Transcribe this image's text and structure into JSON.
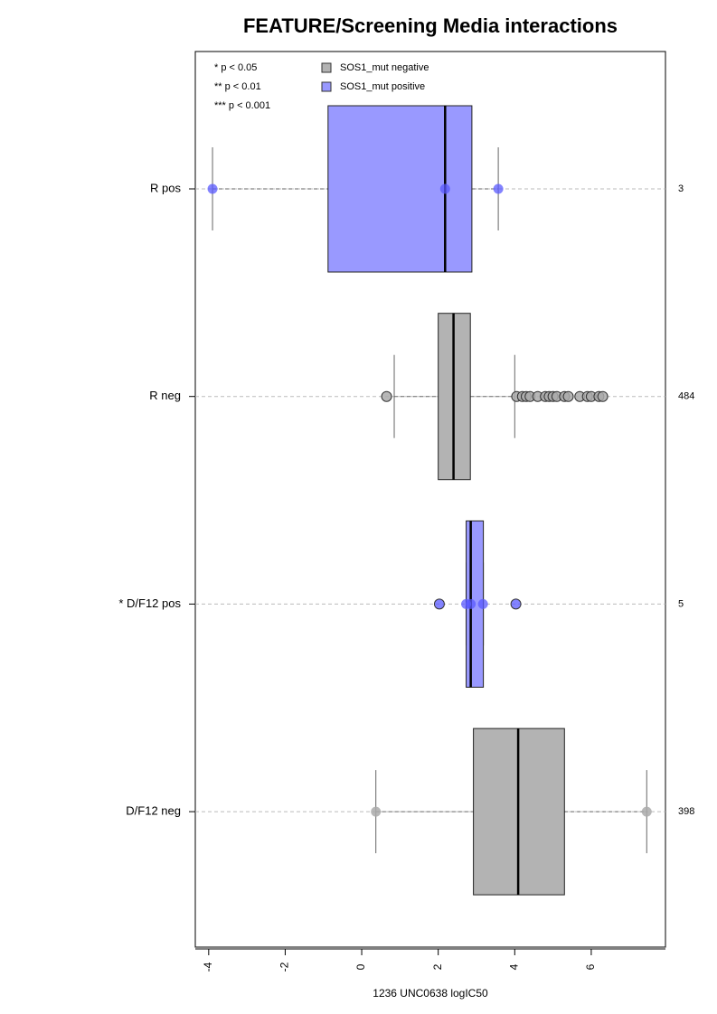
{
  "chart_data": {
    "type": "boxplot",
    "title": "FEATURE/Screening Media interactions",
    "x_label": "1236 UNC0638 logIC50",
    "xlim": [
      -4.35,
      7.94
    ],
    "xticks": [
      -4,
      -2,
      0,
      2,
      4,
      6
    ],
    "grid": true,
    "notes": [
      "* p < 0.05",
      "** p < 0.01",
      "*** p < 0.001"
    ],
    "legend": [
      {
        "name": "SOS1_mut negative",
        "color": "#b3b3b3"
      },
      {
        "name": "SOS1_mut positive",
        "color": "#9999ff"
      }
    ],
    "categories": [
      "R pos",
      "R neg",
      "* D/F12 pos",
      "D/F12 neg"
    ],
    "counts": [
      3,
      484,
      5,
      398
    ],
    "boxes": [
      {
        "color": "#9999ff",
        "whisker_low": -3.9,
        "q1": -0.88,
        "median": 2.18,
        "q3": 2.88,
        "whisker_high": 3.57,
        "points": [
          -3.9,
          2.18,
          3.57
        ]
      },
      {
        "color": "#b3b3b3",
        "whisker_low": 0.85,
        "q1": 2.0,
        "median": 2.4,
        "q3": 2.84,
        "whisker_high": 4.0,
        "points": [
          0.65,
          4.05,
          4.2,
          4.3,
          4.4,
          4.6,
          4.8,
          4.9,
          5.0,
          5.1,
          5.3,
          5.4,
          5.7,
          5.9,
          6.0,
          6.2,
          6.3
        ]
      },
      {
        "color": "#9999ff",
        "whisker_low": 2.73,
        "q1": 2.73,
        "median": 2.85,
        "q3": 3.18,
        "whisker_high": 3.18,
        "points": [
          2.03,
          2.73,
          2.85,
          3.17,
          4.03
        ]
      },
      {
        "color": "#b3b3b3",
        "whisker_low": 0.37,
        "q1": 2.92,
        "median": 4.09,
        "q3": 5.3,
        "whisker_high": 7.45,
        "points": [
          0.37,
          7.45
        ]
      }
    ]
  }
}
